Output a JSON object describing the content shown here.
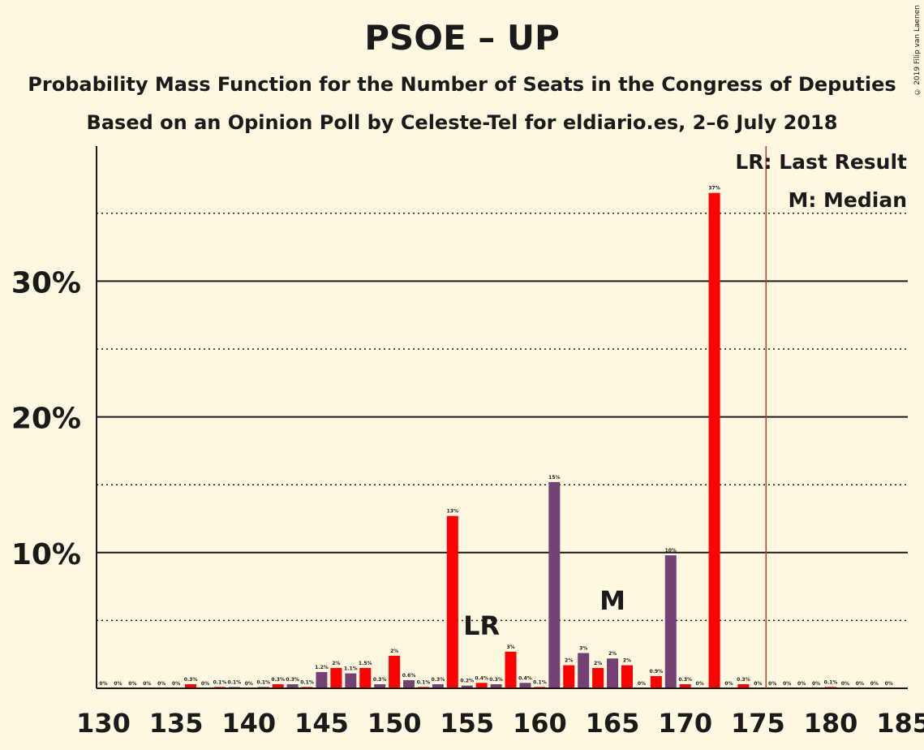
{
  "title": "PSOE – UP",
  "subtitle1": "Probability Mass Function for the Number of Seats in the Congress of Deputies",
  "subtitle2": "Based on an Opinion Poll by Celeste-Tel for eldiario.es, 2–6 July 2018",
  "copyright": "© 2019 Filip van Laenen",
  "legend": {
    "last_result": "LR: Last Result",
    "median": "M: Median"
  },
  "colors": {
    "background": "#FFF8E1",
    "red": "#FF0000",
    "purple": "#734173",
    "lr_line": "#C0392B"
  },
  "chart_data": {
    "type": "bar",
    "x": [
      130,
      131,
      132,
      133,
      134,
      135,
      136,
      137,
      138,
      139,
      140,
      141,
      142,
      143,
      144,
      145,
      146,
      147,
      148,
      149,
      150,
      151,
      152,
      153,
      154,
      155,
      156,
      157,
      158,
      159,
      160,
      161,
      162,
      163,
      164,
      165,
      166,
      167,
      168,
      169,
      170,
      171,
      172,
      173,
      174,
      175,
      176,
      177,
      178,
      179,
      180,
      181,
      182,
      183,
      184,
      185
    ],
    "values": [
      0,
      0,
      0,
      0,
      0,
      0,
      0.3,
      0,
      0.1,
      0.1,
      0,
      0.1,
      0.3,
      0.3,
      0.1,
      1.2,
      1.5,
      1.1,
      1.5,
      0.3,
      2.4,
      0.6,
      0.1,
      0.3,
      12.7,
      0.2,
      0.4,
      0.3,
      2.7,
      0.4,
      0.1,
      15.2,
      1.7,
      2.6,
      1.5,
      2.2,
      1.7,
      0,
      0.9,
      9.8,
      0.3,
      0,
      36.5,
      0,
      0.3,
      0,
      0,
      0,
      0,
      0,
      0.1,
      0,
      0,
      0,
      0,
      0
    ],
    "labels": [
      "0%",
      "0%",
      "0%",
      "0%",
      "0%",
      "0%",
      "0.3%",
      "0%",
      "0.1%",
      "0.1%",
      "0%",
      "0.1%",
      "0.3%",
      "0.3%",
      "0.1%",
      "1.2%",
      "2%",
      "1.1%",
      "1.5%",
      "0.3%",
      "2%",
      "0.6%",
      "0.1%",
      "0.3%",
      "13%",
      "0.2%",
      "0.4%",
      "0.3%",
      "3%",
      "0.4%",
      "0.1%",
      "15%",
      "2%",
      "3%",
      "2%",
      "2%",
      "2%",
      "0%",
      "0.9%",
      "10%",
      "0.3%",
      "0%",
      "37%",
      "0%",
      "0.3%",
      "0%",
      "0%",
      "0%",
      "0%",
      "0%",
      "0.1%",
      "0%",
      "0%",
      "0%",
      "0%",
      ""
    ],
    "colors": [
      "red",
      "purple",
      "red",
      "purple",
      "red",
      "purple",
      "red",
      "purple",
      "red",
      "purple",
      "red",
      "purple",
      "red",
      "purple",
      "red",
      "purple",
      "red",
      "purple",
      "red",
      "purple",
      "red",
      "purple",
      "red",
      "purple",
      "red",
      "purple",
      "red",
      "purple",
      "red",
      "purple",
      "red",
      "purple",
      "red",
      "purple",
      "red",
      "purple",
      "red",
      "purple",
      "red",
      "purple",
      "red",
      "purple",
      "red",
      "purple",
      "red",
      "purple",
      "red",
      "purple",
      "red",
      "purple",
      "red",
      "purple",
      "red",
      "purple",
      "red",
      "purple"
    ],
    "x_ticks": [
      "130",
      "135",
      "140",
      "145",
      "150",
      "155",
      "160",
      "165",
      "170",
      "175",
      "180",
      "185"
    ],
    "y_ticks": [
      "10%",
      "20%",
      "30%"
    ],
    "ylim": [
      0,
      40
    ],
    "solid_gridlines": [
      10,
      20,
      30
    ],
    "dotted_gridlines": [
      5,
      15,
      25,
      35
    ],
    "last_result": 176,
    "last_result_marker": "LR",
    "last_result_marker_seat": 156,
    "median": 165,
    "median_marker": "M"
  }
}
